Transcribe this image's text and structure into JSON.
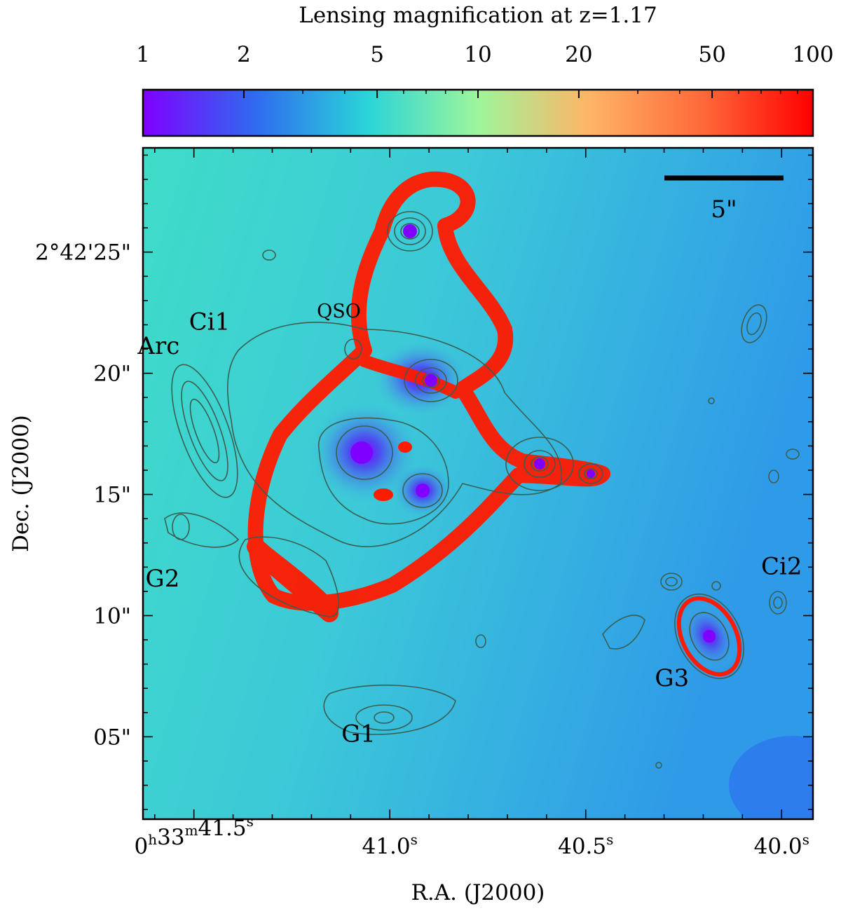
{
  "chart_data": {
    "type": "heatmap",
    "title": "",
    "xlabel": "R.A. (J2000)",
    "ylabel": "Dec. (J2000)",
    "colorbar": {
      "label": "Lensing magnification at z=1.17",
      "scale": "log",
      "range": [
        1,
        100
      ],
      "ticks": [
        1,
        2,
        5,
        10,
        20,
        50,
        100
      ],
      "tick_labels": [
        "1",
        "2",
        "5",
        "10",
        "20",
        "50",
        "100"
      ],
      "colormap": "rainbow",
      "colors": [
        "#7f00ff",
        "#2f6af0",
        "#29d4d8",
        "#9ff59b",
        "#ffb466",
        "#ff6a3a",
        "#ff0000"
      ]
    },
    "x_axis": {
      "unit": "seconds of right ascension (hours 0, minutes 33)",
      "range": [
        41.63,
        39.92
      ],
      "ticks": [
        41.5,
        41.0,
        40.5,
        40.0
      ],
      "tick_labels": [
        {
          "main": "0",
          "sup1": "h",
          "mid": "33",
          "sup2": "m",
          "rest": "41.5",
          "sup3": "s"
        },
        {
          "main": "",
          "sup1": "",
          "mid": "",
          "sup2": "",
          "rest": "41.0",
          "sup3": "s"
        },
        {
          "main": "",
          "sup1": "",
          "mid": "",
          "sup2": "",
          "rest": "40.5",
          "sup3": "s"
        },
        {
          "main": "",
          "sup1": "",
          "mid": "",
          "sup2": "",
          "rest": "40.0",
          "sup3": "s"
        }
      ]
    },
    "y_axis": {
      "unit": "arcsec above +2°42'00\"",
      "range": [
        1.6,
        29.3
      ],
      "ticks": [
        5,
        10,
        15,
        20,
        25
      ],
      "tick_labels": [
        "05\"",
        "10\"",
        "15\"",
        "20\"",
        "2°42'25\""
      ]
    },
    "scale_bar": {
      "label": "5\"",
      "length_arcsec": 5
    },
    "annotations": [
      {
        "text": "QSO",
        "ra_s": 41.13,
        "dec_arcsec": 22.3
      },
      {
        "text": "Ci1",
        "ra_s": 41.46,
        "dec_arcsec": 21.8
      },
      {
        "text": "Arc",
        "ra_s": 41.59,
        "dec_arcsec": 20.8
      },
      {
        "text": "Ci2",
        "ra_s": 40.0,
        "dec_arcsec": 11.7
      },
      {
        "text": "G2",
        "ra_s": 41.58,
        "dec_arcsec": 11.2
      },
      {
        "text": "G3",
        "ra_s": 40.28,
        "dec_arcsec": 7.1
      },
      {
        "text": "G1",
        "ra_s": 41.08,
        "dec_arcsec": 4.8
      }
    ]
  }
}
